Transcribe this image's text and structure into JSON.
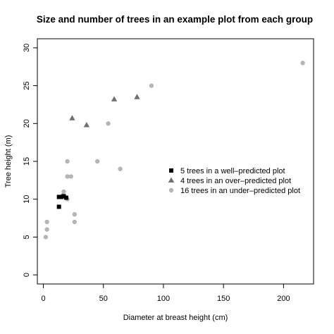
{
  "chart_data": {
    "type": "scatter",
    "title": "Size and number of trees in an example plot from each group",
    "xlabel": "Diameter at breast height (cm)",
    "ylabel": "Tree height (m)",
    "xlim": [
      -5,
      225
    ],
    "ylim": [
      -1.2,
      31.2
    ],
    "x_ticks": [
      0,
      50,
      100,
      150,
      200
    ],
    "y_ticks": [
      0,
      5,
      10,
      15,
      20,
      25,
      30
    ],
    "grid": false,
    "legend_position": "right-center",
    "series": [
      {
        "name": "5 trees in a well–predicted plot",
        "marker": "square",
        "color": "#000000",
        "points": [
          [
            13,
            10.3
          ],
          [
            15,
            10.3
          ],
          [
            17,
            10.4
          ],
          [
            19,
            10.2
          ],
          [
            13,
            9.0
          ]
        ]
      },
      {
        "name": "4 trees in an over–predicted plot",
        "marker": "triangle",
        "color": "#707070",
        "points": [
          [
            24,
            20.7
          ],
          [
            36,
            19.8
          ],
          [
            59,
            23.2
          ],
          [
            78,
            23.5
          ]
        ]
      },
      {
        "name": "16 trees in an under–predicted plot",
        "marker": "circle",
        "color": "#b5b5b5",
        "points": [
          [
            3,
            7
          ],
          [
            3,
            6
          ],
          [
            2,
            5
          ],
          [
            17,
            11
          ],
          [
            20,
            10
          ],
          [
            20,
            13
          ],
          [
            23,
            13
          ],
          [
            20,
            15
          ],
          [
            26,
            8
          ],
          [
            26,
            7
          ],
          [
            45,
            15
          ],
          [
            54,
            20
          ],
          [
            64,
            14
          ],
          [
            90,
            25
          ],
          [
            216,
            28
          ],
          [
            16,
            10.5
          ]
        ]
      }
    ]
  }
}
